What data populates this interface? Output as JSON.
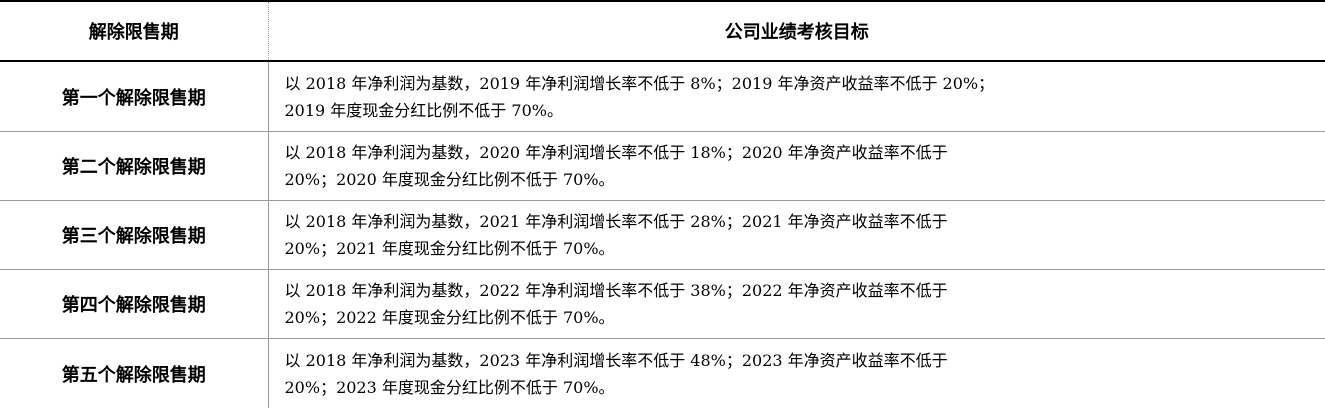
{
  "header": {
    "period": "解除限售期",
    "target": "公司业绩考核目标"
  },
  "rows": [
    {
      "period": "第一个解除限售期",
      "line1": "以 2018 年净利润为基数，2019 年净利润增长率不低于 8%；2019 年净资产收益率不低于 20%；",
      "line2": "2019 年度现金分红比例不低于 70%。"
    },
    {
      "period": "第二个解除限售期",
      "line1": "以 2018 年净利润为基数，2020 年净利润增长率不低于 18%；2020 年净资产收益率不低于",
      "line2": "20%；2020 年度现金分红比例不低于 70%。"
    },
    {
      "period": "第三个解除限售期",
      "line1": "以 2018 年净利润为基数，2021 年净利润增长率不低于 28%；2021 年净资产收益率不低于",
      "line2": "20%；2021 年度现金分红比例不低于 70%。"
    },
    {
      "period": "第四个解除限售期",
      "line1": "以 2018 年净利润为基数，2022 年净利润增长率不低于 38%；2022 年净资产收益率不低于",
      "line2": "20%；2022 年度现金分红比例不低于 70%。"
    },
    {
      "period": "第五个解除限售期",
      "line1": "以 2018 年净利润为基数，2023 年净利润增长率不低于 48%；2023 年净资产收益率不低于",
      "line2": "20%；2023 年度现金分红比例不低于 70%。"
    }
  ]
}
